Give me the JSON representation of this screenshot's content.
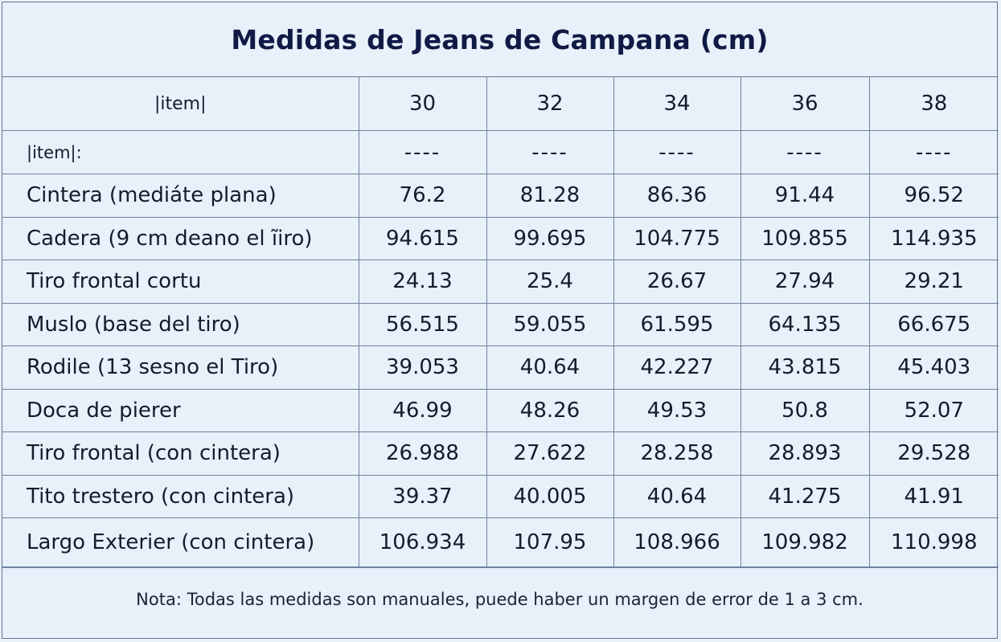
{
  "title": "Medidas de Jeans de Campana (cm)",
  "header": {
    "label": "|item|",
    "sizes": [
      "30",
      "32",
      "34",
      "36",
      "38"
    ]
  },
  "separator": {
    "label": "|item|:",
    "cells": [
      "----",
      "----",
      "----",
      "----",
      "----"
    ]
  },
  "rows": [
    {
      "label": "Cintera (mediáte plana)",
      "values": [
        "76.2",
        "81.28",
        "86.36",
        "91.44",
        "96.52"
      ]
    },
    {
      "label": "Cadera (9 cm deano el ĩiro)",
      "values": [
        "94.615",
        "99.695",
        "104.775",
        "109.855",
        "114.935"
      ]
    },
    {
      "label": "Tiro frontal cortu",
      "values": [
        "24.13",
        "25.4",
        "26.67",
        "27.94",
        "29.21"
      ]
    },
    {
      "label": "Muslo (base del tiro)",
      "values": [
        "56.515",
        "59.055",
        "61.595",
        "64.135",
        "66.675"
      ]
    },
    {
      "label": "Rodile (13 sesno el Tiro)",
      "values": [
        "39.053",
        "40.64",
        "42.227",
        "43.815",
        "45.403"
      ]
    },
    {
      "label": "Doca de pierer",
      "values": [
        "46.99",
        "48.26",
        "49.53",
        "50.8",
        "52.07"
      ]
    },
    {
      "label": "Tiro frontal (con cintera)",
      "values": [
        "26.988",
        "27.622",
        "28.258",
        "28.893",
        "29.528"
      ]
    },
    {
      "label": "Tito trestero (con cintera)",
      "values": [
        "39.37",
        "40.005",
        "40.64",
        "41.275",
        "41.91"
      ]
    },
    {
      "label": "Largo Exterier (con cintera)",
      "values": [
        "106.934",
        "107.95",
        "108.966",
        "109.982",
        "110.998"
      ]
    }
  ],
  "note": "Nota: Todas las medidas son manuales, puede haber un margen de error de 1 a 3 cm."
}
